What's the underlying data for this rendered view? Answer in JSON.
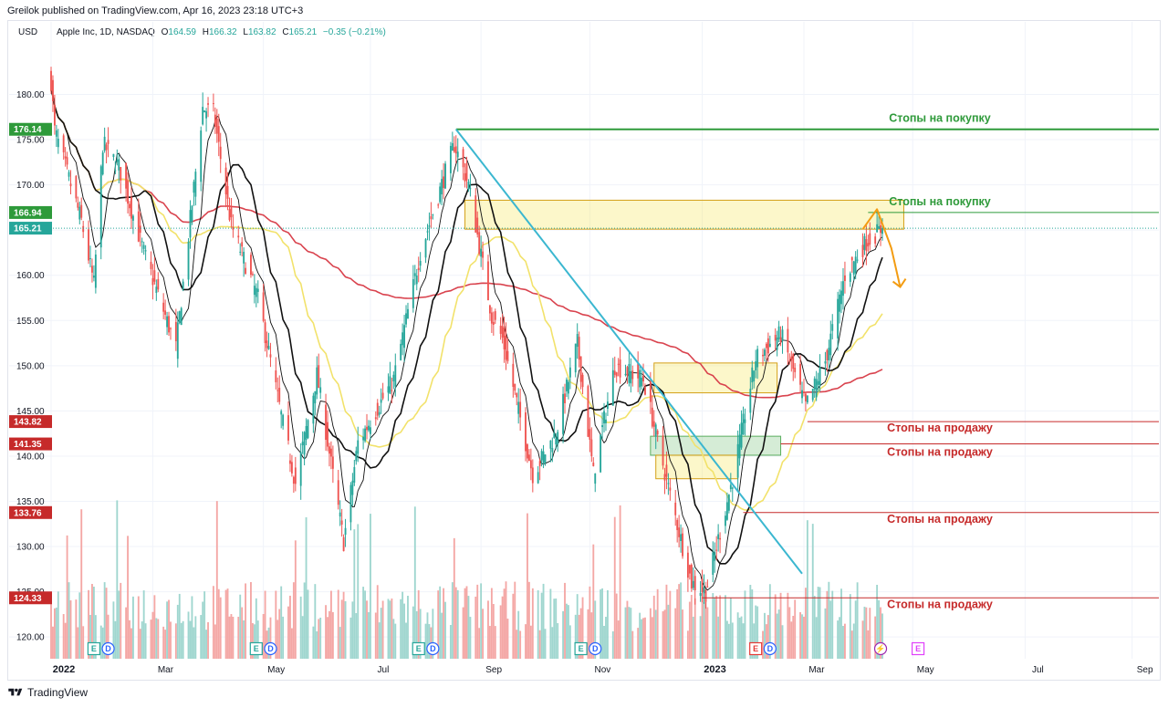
{
  "header": {
    "publisher": "Greilok published on TradingView.com, Apr 16, 2023 23:18 UTC+3",
    "currency": "USD",
    "symbol": "Apple Inc, 1D, NASDAQ",
    "open_key": "O",
    "open": "164.59",
    "high_key": "H",
    "high": "166.32",
    "low_key": "L",
    "low": "163.82",
    "close_key": "C",
    "close": "165.21",
    "change": "−0.35 (−0.21%)"
  },
  "footer": {
    "logo_text": "TradingView"
  },
  "colors": {
    "up": "#26a69a",
    "down": "#ef5350",
    "buy_level": "#2e9a3a",
    "sell_level": "#c62a2a",
    "ma_black": "#111111",
    "ma_yellow": "#f2e26b",
    "ma_red": "#d9434e",
    "trendline": "#3bb7d0",
    "arrow": "#f39c12",
    "vol_up": "#9fd6cf",
    "vol_down": "#f4a7a5"
  },
  "chart_data": {
    "type": "candlestick",
    "title": "Apple Inc, 1D, NASDAQ",
    "ylim": [
      118,
      186
    ],
    "y_ticks": [
      "180.00",
      "175.00",
      "170.00",
      "165.00",
      "160.00",
      "155.00",
      "150.00",
      "145.00",
      "140.00",
      "135.00",
      "130.00",
      "125.00",
      "120.00"
    ],
    "x_ticks": [
      {
        "label": "2022",
        "bold": true,
        "date": "2022-01-03"
      },
      {
        "label": "Mar",
        "bold": false,
        "date": "2022-03-01"
      },
      {
        "label": "May",
        "bold": false,
        "date": "2022-05-02"
      },
      {
        "label": "Jul",
        "bold": false,
        "date": "2022-07-01"
      },
      {
        "label": "Sep",
        "bold": false,
        "date": "2022-09-01"
      },
      {
        "label": "Nov",
        "bold": false,
        "date": "2022-11-01"
      },
      {
        "label": "2023",
        "bold": true,
        "date": "2023-01-03"
      },
      {
        "label": "Mar",
        "bold": false,
        "date": "2023-03-01"
      },
      {
        "label": "May",
        "bold": false,
        "date": "2023-05-01"
      },
      {
        "label": "Jul",
        "bold": false,
        "date": "2023-07-03"
      },
      {
        "label": "Sep",
        "bold": false,
        "date": "2023-09-01"
      }
    ],
    "price_path": [
      {
        "date": "2022-01-03",
        "close": 181.5
      },
      {
        "date": "2022-01-05",
        "close": 176.0
      },
      {
        "date": "2022-01-20",
        "close": 166.0
      },
      {
        "date": "2022-01-27",
        "close": 159.0
      },
      {
        "date": "2022-02-01",
        "close": 174.5
      },
      {
        "date": "2022-02-10",
        "close": 172.0
      },
      {
        "date": "2022-02-24",
        "close": 162.5
      },
      {
        "date": "2022-03-14",
        "close": 152.0
      },
      {
        "date": "2022-03-29",
        "close": 178.5
      },
      {
        "date": "2022-04-04",
        "close": 178.0
      },
      {
        "date": "2022-04-14",
        "close": 165.5
      },
      {
        "date": "2022-04-29",
        "close": 157.5
      },
      {
        "date": "2022-05-12",
        "close": 144.5
      },
      {
        "date": "2022-05-20",
        "close": 137.0
      },
      {
        "date": "2022-06-01",
        "close": 149.0
      },
      {
        "date": "2022-06-16",
        "close": 130.5
      },
      {
        "date": "2022-06-24",
        "close": 141.5
      },
      {
        "date": "2022-07-14",
        "close": 148.5
      },
      {
        "date": "2022-07-29",
        "close": 162.5
      },
      {
        "date": "2022-08-17",
        "close": 174.5
      },
      {
        "date": "2022-08-25",
        "close": 170.0
      },
      {
        "date": "2022-09-07",
        "close": 155.5
      },
      {
        "date": "2022-09-13",
        "close": 153.0
      },
      {
        "date": "2022-09-30",
        "close": 138.0
      },
      {
        "date": "2022-10-13",
        "close": 142.5
      },
      {
        "date": "2022-10-25",
        "close": 152.5
      },
      {
        "date": "2022-11-03",
        "close": 138.0
      },
      {
        "date": "2022-11-15",
        "close": 150.0
      },
      {
        "date": "2022-12-01",
        "close": 148.5
      },
      {
        "date": "2022-12-15",
        "close": 136.5
      },
      {
        "date": "2022-12-28",
        "close": 126.0
      },
      {
        "date": "2023-01-05",
        "close": 125.0
      },
      {
        "date": "2023-01-20",
        "close": 137.5
      },
      {
        "date": "2023-02-02",
        "close": 150.8
      },
      {
        "date": "2023-02-16",
        "close": 153.5
      },
      {
        "date": "2023-03-02",
        "close": 145.5
      },
      {
        "date": "2023-03-13",
        "close": 150.5
      },
      {
        "date": "2023-03-24",
        "close": 160.0
      },
      {
        "date": "2023-04-05",
        "close": 163.7
      },
      {
        "date": "2023-04-14",
        "close": 165.2
      }
    ],
    "moving_averages": [
      {
        "name": "MA (fast, black)",
        "color": "#111111"
      },
      {
        "name": "MA (slow, black)",
        "color": "#111111"
      },
      {
        "name": "MA (yellow)",
        "color": "#f2e26b"
      },
      {
        "name": "MA (red)",
        "color": "#d9434e"
      }
    ],
    "price_badges": [
      {
        "label": "176.14",
        "value": 176.14,
        "color": "#2e9a3a"
      },
      {
        "label": "166.94",
        "value": 166.94,
        "color": "#2e9a3a"
      },
      {
        "label": "165.21",
        "value": 165.21,
        "color": "#26a69a"
      },
      {
        "label": "143.82",
        "value": 143.82,
        "color": "#c62a2a"
      },
      {
        "label": "141.35",
        "value": 141.35,
        "color": "#c62a2a"
      },
      {
        "label": "133.76",
        "value": 133.76,
        "color": "#c62a2a"
      },
      {
        "label": "124.33",
        "value": 124.33,
        "color": "#c62a2a"
      }
    ],
    "levels": [
      {
        "label": "Стопы на покупку",
        "value": 176.14,
        "start": "2022-08-18",
        "color": "#2e9a3a",
        "width": 2
      },
      {
        "label": "Стопы на покупку",
        "value": 166.94,
        "start": "2023-04-06",
        "color": "#2e9a3a",
        "width": 1
      },
      {
        "label": "Стопы на продажу",
        "value": 143.82,
        "start": "2023-03-03",
        "color": "#c62a2a",
        "width": 1
      },
      {
        "label": "Стопы на продажу",
        "value": 141.35,
        "start": "2023-02-16",
        "color": "#c62a2a",
        "width": 1
      },
      {
        "label": "Стопы на продажу",
        "value": 133.76,
        "start": "2023-01-26",
        "color": "#c62a2a",
        "width": 1
      },
      {
        "label": "Стопы на продажу",
        "value": 124.33,
        "start": "2023-01-03",
        "color": "#c62a2a",
        "width": 1
      }
    ],
    "zones": [
      {
        "from": "2022-08-23",
        "to": "2023-04-26",
        "low": 165.1,
        "high": 168.3,
        "color": "#f5e55a"
      },
      {
        "from": "2022-12-07",
        "to": "2023-02-14",
        "low": 147.0,
        "high": 150.3,
        "color": "#f5e55a"
      },
      {
        "from": "2022-12-05",
        "to": "2023-02-16",
        "low": 140.1,
        "high": 142.2,
        "color": "#7cc47f"
      },
      {
        "from": "2022-12-08",
        "to": "2023-01-23",
        "low": 137.5,
        "high": 140.1,
        "color": "#f5e55a"
      }
    ],
    "trendline": {
      "from": {
        "date": "2022-08-18",
        "value": 176.14
      },
      "to": {
        "date": "2023-02-28",
        "value": 127.0
      }
    },
    "arrow_path": [
      {
        "date": "2023-04-03",
        "value": 165.1
      },
      {
        "date": "2023-04-11",
        "value": 167.3
      },
      {
        "date": "2023-04-19",
        "value": 163.0
      },
      {
        "date": "2023-04-24",
        "value": 158.7
      }
    ],
    "events": [
      {
        "date": "2022-01-27",
        "letter": "E",
        "color": "#26a69a"
      },
      {
        "date": "2022-02-04",
        "letter": "D",
        "color": "#2962ff"
      },
      {
        "date": "2022-04-28",
        "letter": "E",
        "color": "#26a69a"
      },
      {
        "date": "2022-05-06",
        "letter": "D",
        "color": "#2962ff"
      },
      {
        "date": "2022-07-28",
        "letter": "E",
        "color": "#26a69a"
      },
      {
        "date": "2022-08-05",
        "letter": "D",
        "color": "#2962ff"
      },
      {
        "date": "2022-10-27",
        "letter": "E",
        "color": "#26a69a"
      },
      {
        "date": "2022-11-04",
        "letter": "D",
        "color": "#2962ff"
      },
      {
        "date": "2023-02-02",
        "letter": "E",
        "color": "#e53935"
      },
      {
        "date": "2023-02-10",
        "letter": "D",
        "color": "#2962ff"
      },
      {
        "date": "2023-04-13",
        "letter": "⚡",
        "color": "#9c27b0"
      },
      {
        "date": "2023-05-04",
        "letter": "E",
        "color": "#e040fb"
      }
    ]
  }
}
